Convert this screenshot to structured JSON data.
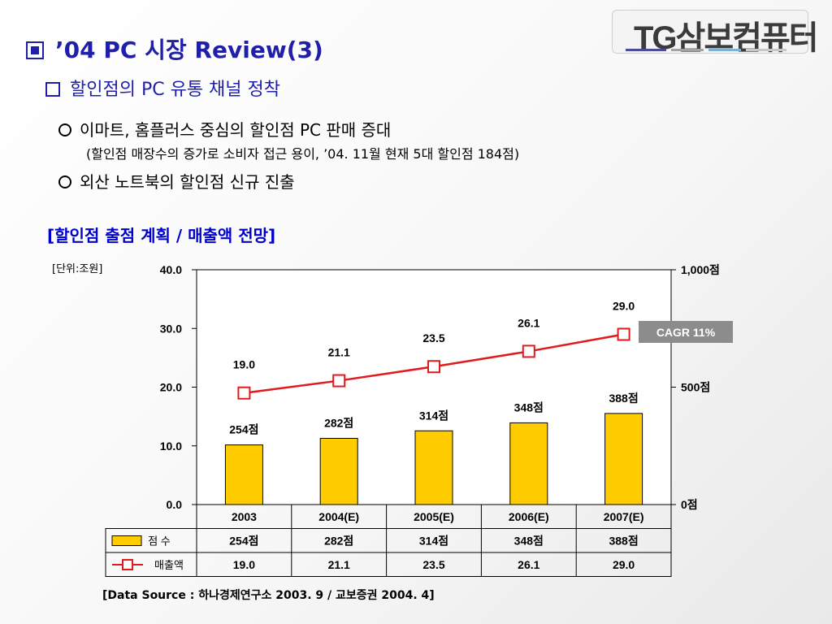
{
  "header": {
    "title": "’04 PC 시장 Review(3)",
    "subtitle": "할인점의 PC 유통 채널 정착",
    "logo": "TG삼보컴퓨터"
  },
  "bullets": [
    "이마트, 홈플러스 중심의 할인점 PC 판매 증대",
    "외산 노트북의 할인점 신규 진출"
  ],
  "subnote": "(할인점 매장수의 증가로 소비자 접근 용이, ’04. 11월 현재 5대 할인점 184점)",
  "section_title": "[할인점 출점 계획 / 매출액 전망]",
  "unit_label": "[단위:조원]",
  "cagr_label": "CAGR 11%",
  "source": "[Data Source : 하나경제연구소 2003. 9 / 교보증권 2004. 4]",
  "colors": {
    "bar": "#ffcc00",
    "line": "#e31a1c",
    "title": "#1f1fa8"
  },
  "chart_data": {
    "type": "bar",
    "categories": [
      "2003",
      "2004(E)",
      "2005(E)",
      "2006(E)",
      "2007(E)"
    ],
    "left_axis": {
      "ticks": [
        "40.0",
        "30.0",
        "20.0",
        "10.0",
        "0.0"
      ],
      "ylim": [
        0,
        40
      ]
    },
    "right_axis": {
      "ticks": [
        "1,000점",
        "500점",
        "0점"
      ],
      "ylim": [
        0,
        1000
      ]
    },
    "series": [
      {
        "name": "점 수",
        "type": "bar",
        "axis": "right",
        "values": [
          254,
          282,
          314,
          348,
          388
        ],
        "labels": [
          "254점",
          "282점",
          "314점",
          "348점",
          "388점"
        ]
      },
      {
        "name": "매출액",
        "type": "line",
        "axis": "left",
        "values": [
          19.0,
          21.1,
          23.5,
          26.1,
          29.0
        ],
        "labels": [
          "19.0",
          "21.1",
          "23.5",
          "26.1",
          "29.0"
        ]
      }
    ],
    "table": {
      "rows": [
        {
          "label": "점 수",
          "cells": [
            "254점",
            "282점",
            "314점",
            "348점",
            "388점"
          ]
        },
        {
          "label": "매출액",
          "cells": [
            "19.0",
            "21.1",
            "23.5",
            "26.1",
            "29.0"
          ]
        }
      ]
    }
  }
}
